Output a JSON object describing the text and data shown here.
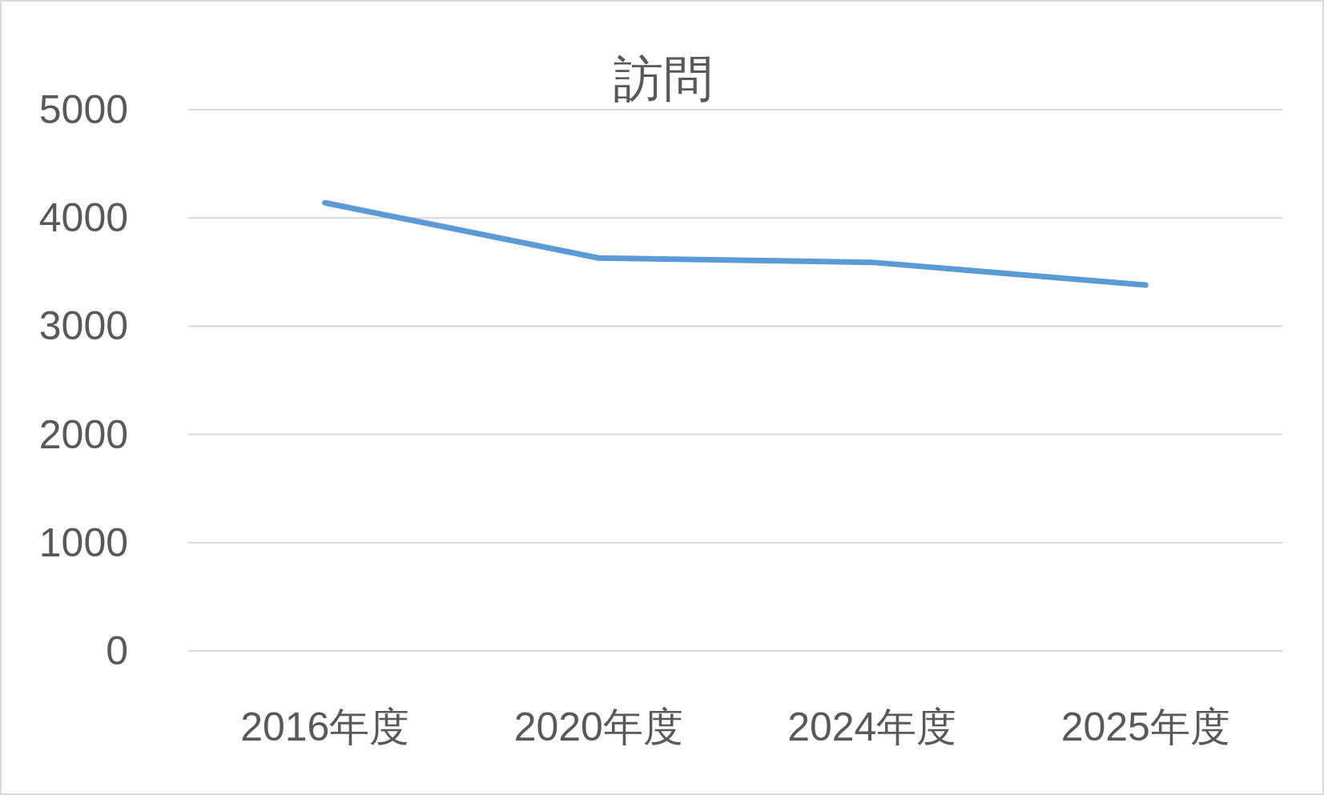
{
  "chart_data": {
    "type": "line",
    "title": "訪問",
    "categories": [
      "2016年度",
      "2020年度",
      "2024年度",
      "2025年度"
    ],
    "series": [
      {
        "color": "#5b9bd5",
        "values": [
          4140,
          3630,
          3590,
          3380
        ]
      }
    ],
    "ylim": [
      0,
      5000
    ],
    "yticks": [
      0,
      1000,
      2000,
      3000,
      4000,
      5000
    ],
    "grid": "y",
    "marker": "none",
    "line_style": "solid"
  }
}
